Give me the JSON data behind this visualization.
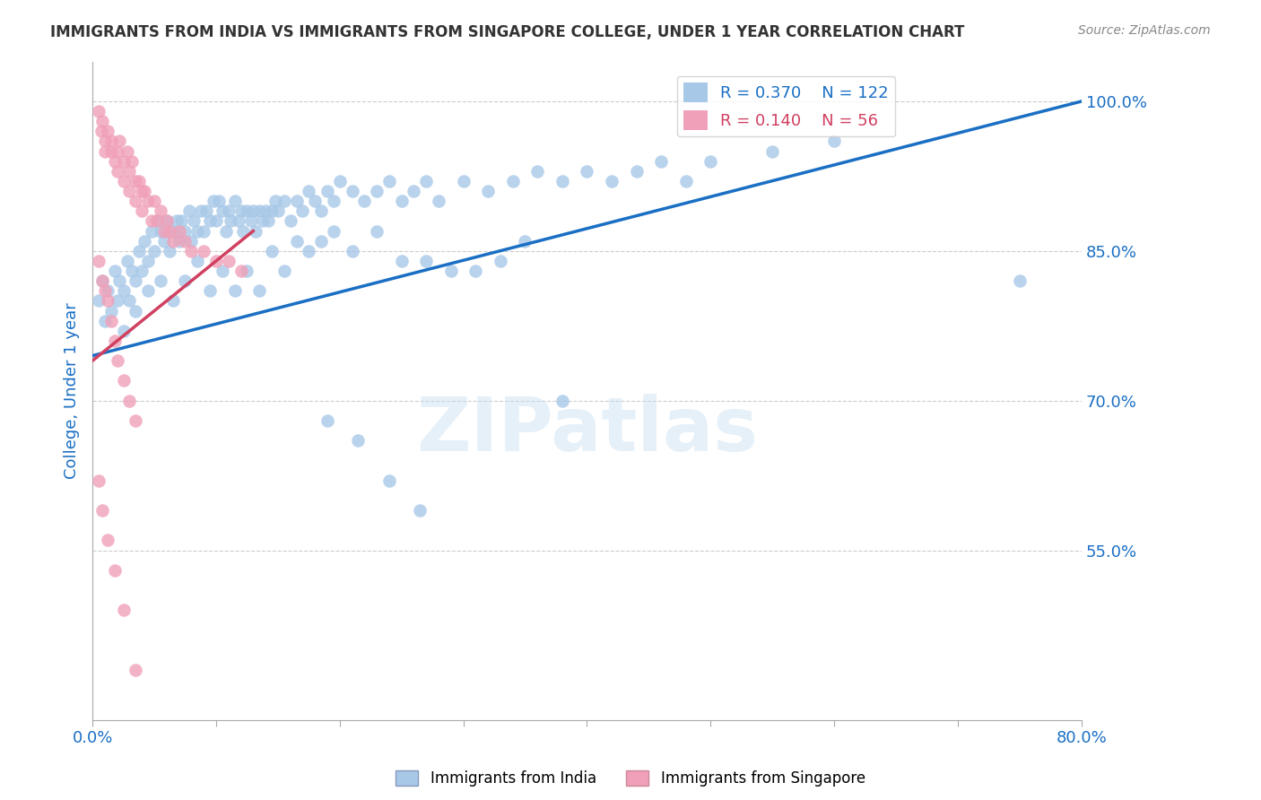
{
  "title": "IMMIGRANTS FROM INDIA VS IMMIGRANTS FROM SINGAPORE COLLEGE, UNDER 1 YEAR CORRELATION CHART",
  "source": "Source: ZipAtlas.com",
  "ylabel": "College, Under 1 year",
  "x_min": 0.0,
  "x_max": 0.8,
  "y_min": 0.38,
  "y_max": 1.04,
  "x_ticks": [
    0.0,
    0.1,
    0.2,
    0.3,
    0.4,
    0.5,
    0.6,
    0.7,
    0.8
  ],
  "y_ticks": [
    0.55,
    0.7,
    0.85,
    1.0
  ],
  "y_tick_labels": [
    "55.0%",
    "70.0%",
    "85.0%",
    "100.0%"
  ],
  "india_color": "#a8c8e8",
  "singapore_color": "#f0a0b8",
  "india_line_color": "#1a6fc4",
  "singapore_line_color": "#d04060",
  "india_R": 0.37,
  "india_N": 122,
  "singapore_R": 0.14,
  "singapore_N": 56,
  "watermark": "ZIPatlas",
  "india_line_x0": 0.0,
  "india_line_y0": 0.745,
  "india_line_x1": 0.8,
  "india_line_y1": 1.0,
  "singapore_line_x0": 0.0,
  "singapore_line_y0": 0.74,
  "singapore_line_x1": 0.13,
  "singapore_line_y1": 0.87,
  "india_scatter_x": [
    0.005,
    0.008,
    0.01,
    0.012,
    0.015,
    0.018,
    0.02,
    0.022,
    0.025,
    0.028,
    0.03,
    0.032,
    0.035,
    0.038,
    0.04,
    0.042,
    0.045,
    0.048,
    0.05,
    0.052,
    0.055,
    0.058,
    0.06,
    0.062,
    0.065,
    0.068,
    0.07,
    0.072,
    0.075,
    0.078,
    0.08,
    0.082,
    0.085,
    0.088,
    0.09,
    0.092,
    0.095,
    0.098,
    0.1,
    0.102,
    0.105,
    0.108,
    0.11,
    0.112,
    0.115,
    0.118,
    0.12,
    0.122,
    0.125,
    0.128,
    0.13,
    0.132,
    0.135,
    0.138,
    0.14,
    0.142,
    0.145,
    0.148,
    0.15,
    0.155,
    0.16,
    0.165,
    0.17,
    0.175,
    0.18,
    0.185,
    0.19,
    0.195,
    0.2,
    0.21,
    0.22,
    0.23,
    0.24,
    0.25,
    0.26,
    0.27,
    0.28,
    0.3,
    0.32,
    0.34,
    0.36,
    0.38,
    0.4,
    0.42,
    0.44,
    0.46,
    0.48,
    0.5,
    0.55,
    0.6,
    0.025,
    0.035,
    0.045,
    0.055,
    0.065,
    0.075,
    0.085,
    0.095,
    0.105,
    0.115,
    0.125,
    0.135,
    0.145,
    0.155,
    0.165,
    0.175,
    0.185,
    0.195,
    0.21,
    0.23,
    0.25,
    0.27,
    0.29,
    0.31,
    0.33,
    0.35,
    0.19,
    0.215,
    0.24,
    0.265,
    0.75,
    0.38
  ],
  "india_scatter_y": [
    0.8,
    0.82,
    0.78,
    0.81,
    0.79,
    0.83,
    0.8,
    0.82,
    0.81,
    0.84,
    0.8,
    0.83,
    0.82,
    0.85,
    0.83,
    0.86,
    0.84,
    0.87,
    0.85,
    0.88,
    0.87,
    0.86,
    0.88,
    0.85,
    0.87,
    0.88,
    0.86,
    0.88,
    0.87,
    0.89,
    0.86,
    0.88,
    0.87,
    0.89,
    0.87,
    0.89,
    0.88,
    0.9,
    0.88,
    0.9,
    0.89,
    0.87,
    0.89,
    0.88,
    0.9,
    0.88,
    0.89,
    0.87,
    0.89,
    0.88,
    0.89,
    0.87,
    0.89,
    0.88,
    0.89,
    0.88,
    0.89,
    0.9,
    0.89,
    0.9,
    0.88,
    0.9,
    0.89,
    0.91,
    0.9,
    0.89,
    0.91,
    0.9,
    0.92,
    0.91,
    0.9,
    0.91,
    0.92,
    0.9,
    0.91,
    0.92,
    0.9,
    0.92,
    0.91,
    0.92,
    0.93,
    0.92,
    0.93,
    0.92,
    0.93,
    0.94,
    0.92,
    0.94,
    0.95,
    0.96,
    0.77,
    0.79,
    0.81,
    0.82,
    0.8,
    0.82,
    0.84,
    0.81,
    0.83,
    0.81,
    0.83,
    0.81,
    0.85,
    0.83,
    0.86,
    0.85,
    0.86,
    0.87,
    0.85,
    0.87,
    0.84,
    0.84,
    0.83,
    0.83,
    0.84,
    0.86,
    0.68,
    0.66,
    0.62,
    0.59,
    0.82,
    0.7
  ],
  "singapore_scatter_x": [
    0.005,
    0.007,
    0.008,
    0.01,
    0.01,
    0.012,
    0.015,
    0.015,
    0.018,
    0.02,
    0.02,
    0.022,
    0.025,
    0.025,
    0.028,
    0.03,
    0.03,
    0.032,
    0.035,
    0.035,
    0.038,
    0.04,
    0.04,
    0.042,
    0.045,
    0.048,
    0.05,
    0.052,
    0.055,
    0.058,
    0.06,
    0.062,
    0.065,
    0.07,
    0.075,
    0.08,
    0.09,
    0.1,
    0.11,
    0.12,
    0.005,
    0.008,
    0.01,
    0.012,
    0.015,
    0.018,
    0.02,
    0.025,
    0.03,
    0.035,
    0.005,
    0.008,
    0.012,
    0.018,
    0.025,
    0.035
  ],
  "singapore_scatter_y": [
    0.99,
    0.97,
    0.98,
    0.96,
    0.95,
    0.97,
    0.95,
    0.96,
    0.94,
    0.95,
    0.93,
    0.96,
    0.94,
    0.92,
    0.95,
    0.93,
    0.91,
    0.94,
    0.92,
    0.9,
    0.92,
    0.91,
    0.89,
    0.91,
    0.9,
    0.88,
    0.9,
    0.88,
    0.89,
    0.87,
    0.88,
    0.87,
    0.86,
    0.87,
    0.86,
    0.85,
    0.85,
    0.84,
    0.84,
    0.83,
    0.84,
    0.82,
    0.81,
    0.8,
    0.78,
    0.76,
    0.74,
    0.72,
    0.7,
    0.68,
    0.62,
    0.59,
    0.56,
    0.53,
    0.49,
    0.43
  ],
  "background_color": "#ffffff",
  "grid_color": "#cccccc",
  "title_color": "#333333",
  "axis_label_color": "#1a6fc4",
  "tick_label_color": "#1a6fc4"
}
